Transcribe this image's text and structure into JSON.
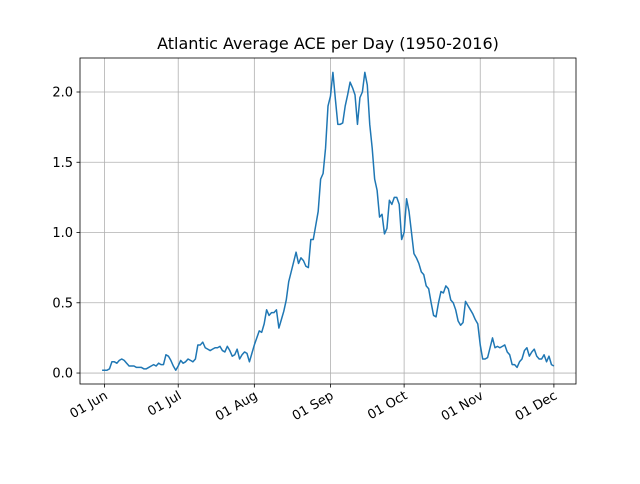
{
  "chart_data": {
    "type": "line",
    "title": "Atlantic Average ACE per Day (1950-2016)",
    "x": [
      "31 May",
      "01 Jun",
      "02 Jun",
      "03 Jun",
      "04 Jun",
      "05 Jun",
      "06 Jun",
      "07 Jun",
      "08 Jun",
      "09 Jun",
      "10 Jun",
      "11 Jun",
      "12 Jun",
      "13 Jun",
      "14 Jun",
      "15 Jun",
      "16 Jun",
      "17 Jun",
      "18 Jun",
      "19 Jun",
      "20 Jun",
      "21 Jun",
      "22 Jun",
      "23 Jun",
      "24 Jun",
      "25 Jun",
      "26 Jun",
      "27 Jun",
      "28 Jun",
      "29 Jun",
      "30 Jun",
      "01 Jul",
      "02 Jul",
      "03 Jul",
      "04 Jul",
      "05 Jul",
      "06 Jul",
      "07 Jul",
      "08 Jul",
      "09 Jul",
      "10 Jul",
      "11 Jul",
      "12 Jul",
      "13 Jul",
      "14 Jul",
      "15 Jul",
      "16 Jul",
      "17 Jul",
      "18 Jul",
      "19 Jul",
      "20 Jul",
      "21 Jul",
      "22 Jul",
      "23 Jul",
      "24 Jul",
      "25 Jul",
      "26 Jul",
      "27 Jul",
      "28 Jul",
      "29 Jul",
      "30 Jul",
      "31 Jul",
      "01 Aug",
      "02 Aug",
      "03 Aug",
      "04 Aug",
      "05 Aug",
      "06 Aug",
      "07 Aug",
      "08 Aug",
      "09 Aug",
      "10 Aug",
      "11 Aug",
      "12 Aug",
      "13 Aug",
      "14 Aug",
      "15 Aug",
      "16 Aug",
      "17 Aug",
      "18 Aug",
      "19 Aug",
      "20 Aug",
      "21 Aug",
      "22 Aug",
      "23 Aug",
      "24 Aug",
      "25 Aug",
      "26 Aug",
      "27 Aug",
      "28 Aug",
      "29 Aug",
      "30 Aug",
      "31 Aug",
      "01 Sep",
      "02 Sep",
      "03 Sep",
      "04 Sep",
      "05 Sep",
      "06 Sep",
      "07 Sep",
      "08 Sep",
      "09 Sep",
      "10 Sep",
      "11 Sep",
      "12 Sep",
      "13 Sep",
      "14 Sep",
      "15 Sep",
      "16 Sep",
      "17 Sep",
      "18 Sep",
      "19 Sep",
      "20 Sep",
      "21 Sep",
      "22 Sep",
      "23 Sep",
      "24 Sep",
      "25 Sep",
      "26 Sep",
      "27 Sep",
      "28 Sep",
      "29 Sep",
      "30 Sep",
      "01 Oct",
      "02 Oct",
      "03 Oct",
      "04 Oct",
      "05 Oct",
      "06 Oct",
      "07 Oct",
      "08 Oct",
      "09 Oct",
      "10 Oct",
      "11 Oct",
      "12 Oct",
      "13 Oct",
      "14 Oct",
      "15 Oct",
      "16 Oct",
      "17 Oct",
      "18 Oct",
      "19 Oct",
      "20 Oct",
      "21 Oct",
      "22 Oct",
      "23 Oct",
      "24 Oct",
      "25 Oct",
      "26 Oct",
      "27 Oct",
      "28 Oct",
      "29 Oct",
      "30 Oct",
      "31 Oct",
      "01 Nov",
      "02 Nov",
      "03 Nov",
      "04 Nov",
      "05 Nov",
      "06 Nov",
      "07 Nov",
      "08 Nov",
      "09 Nov",
      "10 Nov",
      "11 Nov",
      "12 Nov",
      "13 Nov",
      "14 Nov",
      "15 Nov",
      "16 Nov",
      "17 Nov",
      "18 Nov",
      "19 Nov",
      "20 Nov",
      "21 Nov",
      "22 Nov",
      "23 Nov",
      "24 Nov",
      "25 Nov",
      "26 Nov",
      "27 Nov",
      "28 Nov",
      "29 Nov",
      "30 Nov",
      "01 Dec"
    ],
    "values": [
      0.02,
      0.02,
      0.02,
      0.03,
      0.08,
      0.08,
      0.07,
      0.09,
      0.1,
      0.09,
      0.07,
      0.05,
      0.05,
      0.05,
      0.04,
      0.04,
      0.04,
      0.03,
      0.03,
      0.04,
      0.05,
      0.06,
      0.05,
      0.07,
      0.06,
      0.06,
      0.13,
      0.12,
      0.09,
      0.05,
      0.02,
      0.05,
      0.09,
      0.07,
      0.08,
      0.1,
      0.09,
      0.08,
      0.1,
      0.2,
      0.2,
      0.22,
      0.18,
      0.17,
      0.16,
      0.17,
      0.18,
      0.18,
      0.19,
      0.16,
      0.15,
      0.19,
      0.16,
      0.12,
      0.13,
      0.17,
      0.1,
      0.13,
      0.15,
      0.14,
      0.08,
      0.14,
      0.2,
      0.25,
      0.3,
      0.29,
      0.35,
      0.45,
      0.41,
      0.43,
      0.43,
      0.45,
      0.32,
      0.38,
      0.44,
      0.52,
      0.65,
      0.72,
      0.79,
      0.86,
      0.78,
      0.82,
      0.8,
      0.76,
      0.75,
      0.95,
      0.95,
      1.05,
      1.15,
      1.38,
      1.42,
      1.6,
      1.9,
      1.97,
      2.14,
      1.95,
      1.77,
      1.77,
      1.78,
      1.9,
      1.98,
      2.07,
      2.03,
      1.98,
      1.77,
      1.96,
      2.0,
      2.14,
      2.05,
      1.77,
      1.6,
      1.38,
      1.3,
      1.11,
      1.13,
      0.99,
      1.03,
      1.23,
      1.2,
      1.25,
      1.25,
      1.2,
      0.95,
      1.0,
      1.24,
      1.15,
      1.0,
      0.85,
      0.82,
      0.78,
      0.72,
      0.7,
      0.62,
      0.6,
      0.5,
      0.41,
      0.4,
      0.5,
      0.58,
      0.57,
      0.62,
      0.6,
      0.52,
      0.5,
      0.45,
      0.37,
      0.34,
      0.36,
      0.51,
      0.48,
      0.45,
      0.42,
      0.38,
      0.35,
      0.2,
      0.1,
      0.1,
      0.11,
      0.18,
      0.25,
      0.18,
      0.19,
      0.18,
      0.19,
      0.2,
      0.15,
      0.13,
      0.06,
      0.06,
      0.04,
      0.08,
      0.1,
      0.16,
      0.18,
      0.12,
      0.15,
      0.17,
      0.12,
      0.1,
      0.1,
      0.13,
      0.08,
      0.12,
      0.06,
      0.05
    ],
    "color": "#1f77b4",
    "xlim": [
      "22 May",
      "10 Dec"
    ],
    "xticks": [
      "01 Jun",
      "01 Jul",
      "01 Aug",
      "01 Sep",
      "01 Oct",
      "01 Nov",
      "01 Dec"
    ],
    "ylim": [
      -0.078,
      2.242
    ],
    "yticks": [
      {
        "value": 0,
        "label": "0.0"
      },
      0.5,
      {
        "value": 1,
        "label": "1.0"
      },
      1.5,
      {
        "value": 2,
        "label": "2.0"
      }
    ],
    "grid": true
  }
}
